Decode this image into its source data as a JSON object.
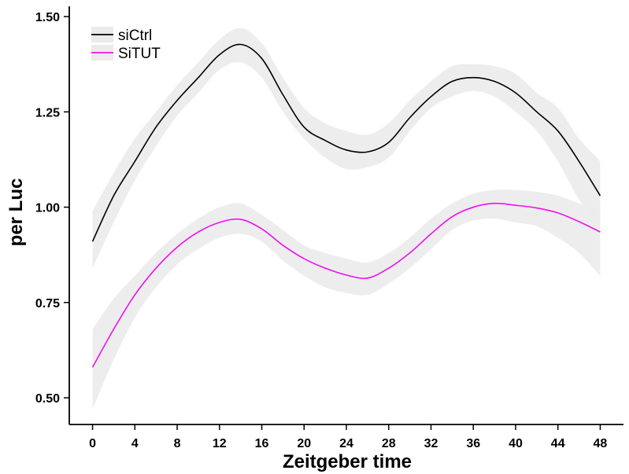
{
  "chart_data": {
    "type": "line",
    "title": "",
    "xlabel": "Zeitgeber time",
    "ylabel": "per Luc",
    "xlim": [
      -2.2,
      50.2
    ],
    "ylim": [
      0.43,
      1.527
    ],
    "xticks": [
      0,
      4,
      8,
      12,
      16,
      20,
      24,
      28,
      32,
      36,
      40,
      44,
      48
    ],
    "yticks": [
      0.5,
      0.75,
      1.0,
      1.25,
      1.5
    ],
    "ytick_labels": [
      "0.50",
      "0.75",
      "1.00",
      "1.25",
      "1.50"
    ],
    "grid": false,
    "legend": "top-left",
    "band_color": "#ebebeb",
    "series": [
      {
        "name": "siCtrl",
        "color": "#000000",
        "x": [
          0,
          2,
          4,
          6,
          8,
          10,
          12,
          14,
          16,
          18,
          20,
          22,
          24,
          26,
          28,
          30,
          32,
          34,
          36,
          38,
          40,
          42,
          44,
          46,
          48
        ],
        "y": [
          0.91,
          1.03,
          1.12,
          1.21,
          1.28,
          1.34,
          1.4,
          1.427,
          1.39,
          1.295,
          1.21,
          1.175,
          1.15,
          1.145,
          1.17,
          1.235,
          1.29,
          1.33,
          1.34,
          1.33,
          1.3,
          1.25,
          1.2,
          1.12,
          1.03
        ],
        "lower": [
          0.84,
          0.96,
          1.07,
          1.16,
          1.24,
          1.3,
          1.36,
          1.38,
          1.34,
          1.25,
          1.18,
          1.13,
          1.1,
          1.105,
          1.13,
          1.2,
          1.26,
          1.29,
          1.305,
          1.29,
          1.25,
          1.2,
          1.12,
          1.02,
          0.95
        ],
        "upper": [
          0.99,
          1.09,
          1.18,
          1.25,
          1.32,
          1.38,
          1.44,
          1.47,
          1.43,
          1.34,
          1.26,
          1.22,
          1.2,
          1.19,
          1.22,
          1.28,
          1.33,
          1.37,
          1.375,
          1.37,
          1.35,
          1.3,
          1.26,
          1.18,
          1.12
        ]
      },
      {
        "name": "SiTUT",
        "color": "#ee10ee",
        "x": [
          0,
          2,
          4,
          6,
          8,
          10,
          12,
          14,
          16,
          18,
          20,
          22,
          24,
          26,
          28,
          30,
          32,
          34,
          36,
          38,
          40,
          42,
          44,
          46,
          48
        ],
        "y": [
          0.58,
          0.68,
          0.77,
          0.84,
          0.895,
          0.935,
          0.96,
          0.968,
          0.943,
          0.9,
          0.865,
          0.84,
          0.822,
          0.814,
          0.84,
          0.88,
          0.93,
          0.975,
          1.0,
          1.01,
          1.005,
          0.998,
          0.985,
          0.962,
          0.935
        ],
        "lower": [
          0.47,
          0.6,
          0.71,
          0.79,
          0.85,
          0.89,
          0.92,
          0.93,
          0.91,
          0.86,
          0.82,
          0.79,
          0.775,
          0.77,
          0.8,
          0.84,
          0.89,
          0.94,
          0.965,
          0.97,
          0.96,
          0.95,
          0.92,
          0.88,
          0.82
        ],
        "upper": [
          0.68,
          0.76,
          0.82,
          0.88,
          0.93,
          0.97,
          1.0,
          1.01,
          0.98,
          0.94,
          0.9,
          0.88,
          0.865,
          0.855,
          0.88,
          0.92,
          0.97,
          1.01,
          1.035,
          1.045,
          1.045,
          1.04,
          1.03,
          1.01,
          0.99
        ]
      }
    ]
  }
}
